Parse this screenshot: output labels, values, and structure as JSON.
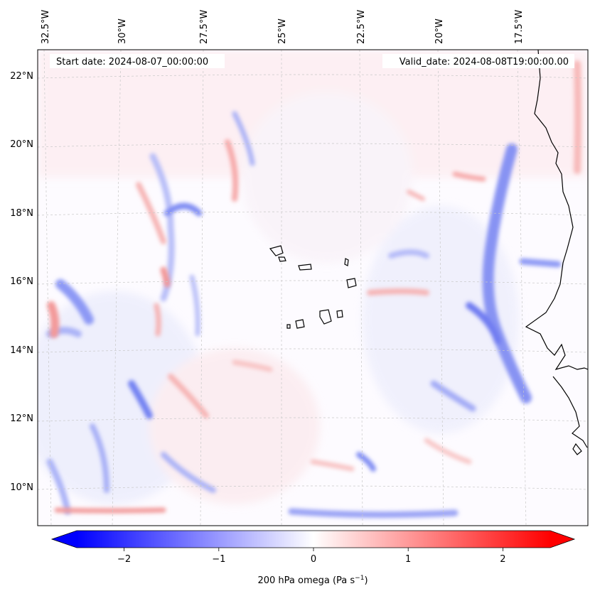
{
  "map": {
    "start_date": "Start date: 2024-08-07_00:00:00",
    "valid_date": "Valid_date: 2024-08-08T19:00:00.00",
    "lon_labels": [
      "32.5°W",
      "30°W",
      "27.5°W",
      "25°W",
      "22.5°W",
      "20°W",
      "17.5°W"
    ],
    "lat_labels": [
      "22°N",
      "20°N",
      "18°N",
      "16°N",
      "14°N",
      "12°N",
      "10°N"
    ],
    "grid_lines": true,
    "projection": "lambert-conformal"
  },
  "colorbar": {
    "label_prefix": "200 hPa omega (Pa s",
    "label_exponent": "−1",
    "label_suffix": ")",
    "tick_labels": [
      "−2",
      "−1",
      "0",
      "1",
      "2"
    ],
    "tick_values": [
      -2,
      -1,
      0,
      1,
      2
    ],
    "range": [
      -2.5,
      2.5
    ],
    "extend": "both",
    "colormap": "bwr",
    "color_low": "#0000ff",
    "color_mid": "#ffffff",
    "color_high": "#ff0000"
  },
  "chart_data": {
    "type": "heatmap",
    "variable": "200 hPa omega",
    "units": "Pa s-1",
    "lon_range": [
      -33,
      -15.5
    ],
    "lat_range": [
      9,
      22.7
    ]
  }
}
